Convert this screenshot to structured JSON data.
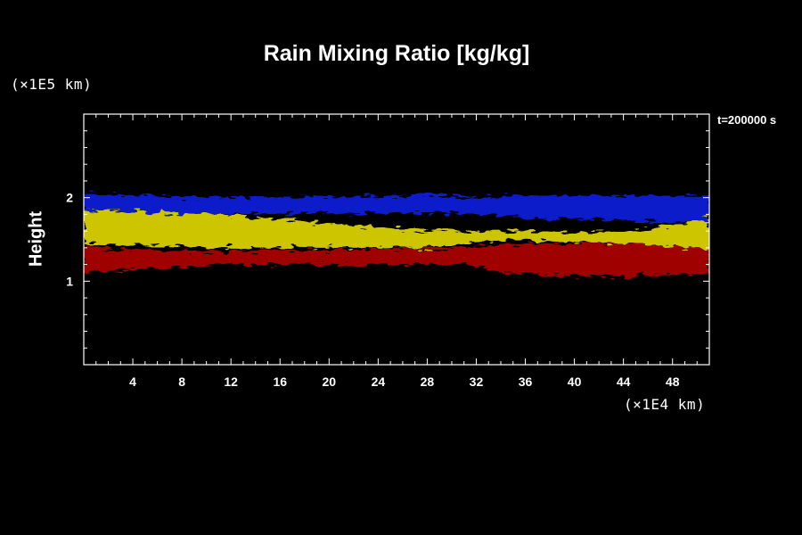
{
  "chart_data": {
    "type": "heatmap",
    "title": "Rain Mixing Ratio [kg/kg]",
    "xlabel": "",
    "ylabel": "Height",
    "x_unit": "(×1E4 km)",
    "y_unit": "(×1E5 km)",
    "time_label": "t=200000 s",
    "xlim": [
      0,
      51
    ],
    "ylim": [
      0,
      3
    ],
    "x_ticks": [
      4,
      8,
      12,
      16,
      20,
      24,
      28,
      32,
      36,
      40,
      44,
      48
    ],
    "y_ticks": [
      1,
      2
    ],
    "colors": {
      "background": "#000000",
      "blue": "#0b1bd6",
      "yellow": "#d8d000",
      "green": "#22dd22",
      "red": "#a80000",
      "white": "#f5f5d8"
    },
    "layers": [
      {
        "color": "blue",
        "x": [
          0.0,
          10.5,
          29.4,
          31.3,
          37.6,
          51.0
        ],
        "top": [
          2.05,
          2.0,
          2.03,
          2.0,
          2.03,
          2.02
        ],
        "bottom": [
          1.85,
          1.8,
          1.82,
          1.8,
          1.75,
          1.7
        ]
      },
      {
        "color": "yellow",
        "x": [
          0.0,
          10.5,
          28.1,
          34.3,
          44.2,
          51.0
        ],
        "top": [
          1.85,
          1.8,
          1.6,
          1.6,
          1.58,
          1.75
        ],
        "bottom": [
          1.45,
          1.4,
          1.4,
          1.5,
          1.45,
          1.4
        ]
      },
      {
        "color": "red",
        "x": [
          0.0,
          10.5,
          31.3,
          34.3,
          43.2,
          51.0
        ],
        "top": [
          1.4,
          1.35,
          1.4,
          1.45,
          1.45,
          1.4
        ],
        "bottom": [
          1.1,
          1.2,
          1.2,
          1.1,
          1.05,
          1.1
        ]
      }
    ]
  }
}
